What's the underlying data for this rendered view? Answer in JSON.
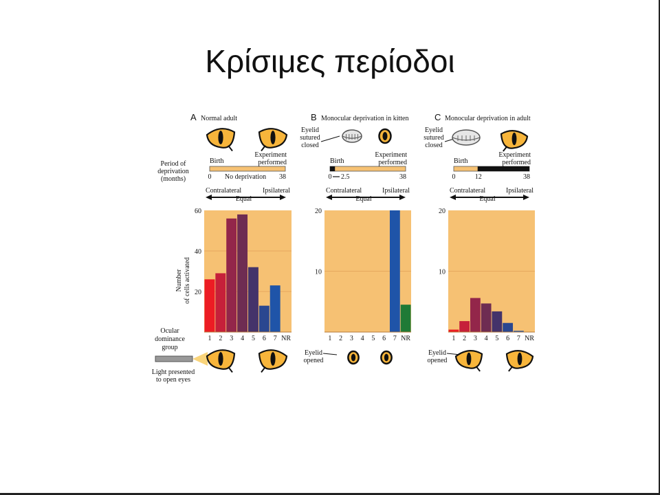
{
  "slide": {
    "title": "Κρίσιμες περίοδοι"
  },
  "left_labels": {
    "period": [
      "Period of",
      "deprivation",
      "(months)"
    ],
    "ylabel": [
      "Number",
      "of cells activated"
    ],
    "odg": [
      "Ocular",
      "dominance",
      "group"
    ],
    "light": [
      "Light presented",
      "to open eyes"
    ]
  },
  "colors": {
    "panel_bg": "#f6c173",
    "grid": "#e6a85f",
    "bar_colors": [
      "#ec1c24",
      "#c6203a",
      "#93264a",
      "#6e2c52",
      "#44336a",
      "#2a4790",
      "#1f54a8",
      "#1f7a36"
    ],
    "eye_iris": "#f7b53b",
    "timeline_open": "#f6c173",
    "timeline_closed": "#111111"
  },
  "chart_data": [
    {
      "type": "bar",
      "letter": "A",
      "title": "Normal adult",
      "categories": [
        "1",
        "2",
        "3",
        "4",
        "5",
        "6",
        "7",
        "NR"
      ],
      "values": [
        26,
        29,
        56,
        58,
        32,
        13,
        23,
        0
      ],
      "ylim": [
        0,
        60
      ],
      "yticks": [
        "20",
        "40",
        "60"
      ],
      "ytick_values": [
        20,
        40,
        60
      ],
      "axis_labels": {
        "left": "Contralateral",
        "mid": "Equal",
        "right": "Ipsilateral"
      },
      "timeline": {
        "start": "0",
        "end": "38",
        "mid": "No deprivation",
        "birth": "Birth",
        "exp": [
          "Experiment",
          "performed"
        ],
        "closed_until": 0
      },
      "bottom_note": ""
    },
    {
      "type": "bar",
      "letter": "B",
      "title": "Monocular deprivation in kitten",
      "categories": [
        "1",
        "2",
        "3",
        "4",
        "5",
        "6",
        "7",
        "NR"
      ],
      "values": [
        0,
        0,
        0,
        0,
        0,
        0,
        20,
        4.5
      ],
      "ylim": [
        0,
        20
      ],
      "yticks": [
        "10",
        "20"
      ],
      "ytick_values": [
        10,
        20
      ],
      "axis_labels": {
        "left": "Contralateral",
        "mid": "Equal",
        "right": "Ipsilateral"
      },
      "timeline": {
        "start": "0",
        "end": "38",
        "mid": "2.5",
        "birth": "Birth",
        "exp": [
          "Experiment",
          "performed"
        ],
        "closed_until": 2.5
      },
      "eyelid_note": [
        "Eyelid",
        "sutured",
        "closed"
      ],
      "bottom_note": [
        "Eyelid",
        "opened"
      ]
    },
    {
      "type": "bar",
      "letter": "C",
      "title": "Monocular deprivation in adult",
      "categories": [
        "1",
        "2",
        "3",
        "4",
        "5",
        "6",
        "7",
        "NR"
      ],
      "values": [
        0.4,
        1.8,
        5.6,
        4.7,
        3.4,
        1.5,
        0.2,
        0
      ],
      "ylim": [
        0,
        20
      ],
      "yticks": [
        "10",
        "20"
      ],
      "ytick_values": [
        10,
        20
      ],
      "axis_labels": {
        "left": "Contralateral",
        "mid": "Equal",
        "right": "Ipsilateral"
      },
      "timeline": {
        "start": "0",
        "end": "38",
        "mid": "12",
        "birth": "Birth",
        "exp": [
          "Experiment",
          "performed"
        ],
        "closed_from": 12
      },
      "eyelid_note": [
        "Eyelid",
        "sutured",
        "closed"
      ],
      "bottom_note": [
        "Eyelid",
        "opened"
      ]
    }
  ]
}
